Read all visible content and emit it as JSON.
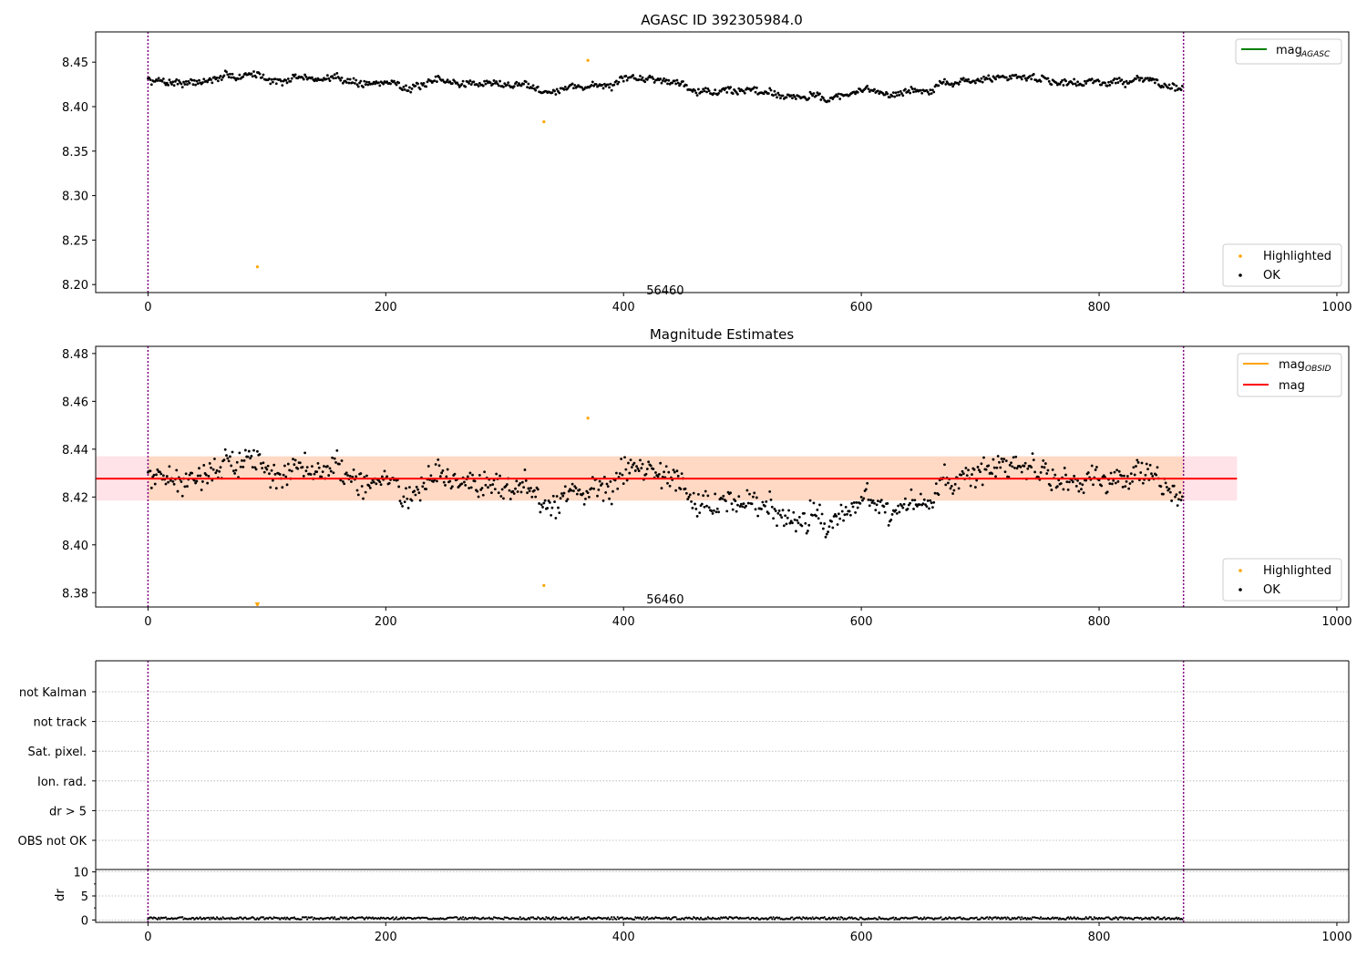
{
  "chart_data": [
    {
      "type": "scatter",
      "title": "AGASC ID 392305984.0",
      "xlabel": "",
      "ylabel": "",
      "xlim": [
        -44,
        1010
      ],
      "ylim": [
        8.191,
        8.484
      ],
      "xticks": [
        0,
        200,
        400,
        600,
        800,
        1000
      ],
      "yticks": [
        8.2,
        8.25,
        8.3,
        8.35,
        8.4,
        8.45
      ],
      "ytick_labels": [
        "8.20",
        "8.25",
        "8.30",
        "8.35",
        "8.40",
        "8.45"
      ],
      "xtick_labels": [
        "0",
        "200",
        "400",
        "600",
        "800",
        "1000"
      ],
      "grid": false,
      "annotation": {
        "text": "56460",
        "x": 435,
        "y": 8.197
      },
      "vlines": [
        0,
        871
      ],
      "legend_lines": [
        {
          "label": "mag",
          "subscript": "AGASC",
          "color": "#008000",
          "position": "top-right"
        }
      ],
      "legend_points": {
        "position": "bottom-right",
        "entries": [
          {
            "label": "Highlighted",
            "color": "#ffa500"
          },
          {
            "label": "OK",
            "color": "#000000"
          }
        ]
      },
      "series": [
        {
          "name": "OK",
          "n_points": 871,
          "x_range": [
            0,
            870
          ],
          "y_center": 8.427,
          "y_spread": 0.02,
          "y_range": [
            8.405,
            8.452
          ],
          "color": "#000000"
        },
        {
          "name": "Highlighted",
          "x": [
            92,
            333,
            370
          ],
          "y": [
            8.22,
            8.383,
            8.452
          ],
          "color": "#ffa500"
        }
      ]
    },
    {
      "type": "scatter",
      "title": "Magnitude Estimates",
      "xlabel": "",
      "ylabel": "",
      "xlim": [
        -44,
        1010
      ],
      "ylim": [
        8.374,
        8.483
      ],
      "xticks": [
        0,
        200,
        400,
        600,
        800,
        1000
      ],
      "xtick_labels": [
        "0",
        "200",
        "400",
        "600",
        "800",
        "1000"
      ],
      "yticks": [
        8.38,
        8.4,
        8.42,
        8.44,
        8.46,
        8.48
      ],
      "ytick_labels": [
        "8.38",
        "8.40",
        "8.42",
        "8.44",
        "8.46",
        "8.48"
      ],
      "grid": false,
      "annotation": {
        "text": "56460",
        "x": 435,
        "y": 8.377
      },
      "vlines": [
        0,
        871
      ],
      "bands": [
        {
          "x_range": [
            -44,
            916
          ],
          "y_range": [
            8.4185,
            8.437
          ],
          "color": "#ffc0cb"
        },
        {
          "x_range": [
            0,
            871
          ],
          "y_range": [
            8.4185,
            8.437
          ],
          "color": "#ffcc99"
        }
      ],
      "hline": {
        "y": 8.4277,
        "x_range": [
          -44,
          916
        ],
        "color": "#ff0000"
      },
      "legend_lines": [
        {
          "label": "mag",
          "subscript": "OBSID",
          "color": "#ffa500"
        },
        {
          "label": "mag",
          "subscript": "",
          "color": "#ff0000"
        }
      ],
      "legend_points": {
        "position": "bottom-right",
        "entries": [
          {
            "label": "Highlighted",
            "color": "#ffa500"
          },
          {
            "label": "OK",
            "color": "#000000"
          }
        ]
      },
      "series": [
        {
          "name": "OK",
          "n_points": 871,
          "x_range": [
            0,
            870
          ],
          "y_center": 8.427,
          "y_spread": 0.02,
          "y_range": [
            8.403,
            8.452
          ],
          "color": "#000000"
        },
        {
          "name": "Highlighted",
          "x": [
            92,
            333,
            370
          ],
          "y": [
            8.375,
            8.383,
            8.453
          ],
          "color": "#ffa500"
        }
      ]
    },
    {
      "type": "scatter",
      "title": "",
      "xlim": [
        -44,
        1010
      ],
      "categories": [
        "OBS not OK",
        "dr > 5",
        "Ion. rad.",
        "Sat. pixel.",
        "not track",
        "not Kalman"
      ],
      "grid": true,
      "vlines": [
        0,
        871
      ],
      "series": []
    },
    {
      "type": "scatter",
      "title": "",
      "xlabel": "",
      "ylabel": "dr",
      "xlim": [
        -44,
        1010
      ],
      "ylim": [
        -0.5,
        10.5
      ],
      "yticks": [
        0,
        5,
        10
      ],
      "ytick_labels": [
        "0",
        "5",
        "10"
      ],
      "xticks": [
        0,
        200,
        400,
        600,
        800,
        1000
      ],
      "xtick_labels": [
        "0",
        "200",
        "400",
        "600",
        "800",
        "1000"
      ],
      "grid": true,
      "vlines": [
        0,
        871
      ],
      "series": [
        {
          "name": "dr",
          "n_points": 871,
          "x_range": [
            0,
            870
          ],
          "y_center": 0.3,
          "y_range": [
            0.1,
            0.6
          ],
          "color": "#000000"
        }
      ]
    }
  ]
}
